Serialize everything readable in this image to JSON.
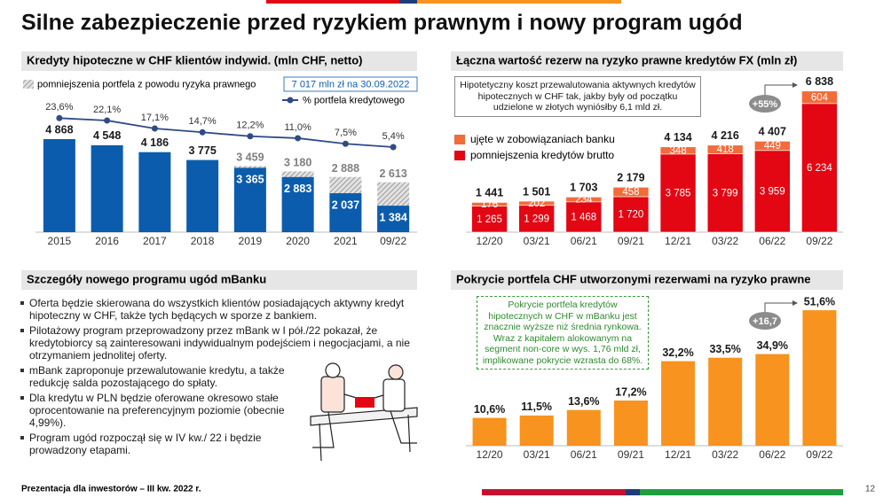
{
  "title": "Silne zabezpieczenie przed ryzykiem prawnym i nowy program ugód",
  "chart_data": [
    {
      "type": "combo",
      "title": "Kredyty hipoteczne w CHF klientów indywid. (mln CHF, netto)",
      "categories": [
        "2015",
        "2016",
        "2017",
        "2018",
        "2019",
        "2020",
        "2021",
        "09/22"
      ],
      "series": [
        {
          "name": "pomniejszenia portfela z powodu ryzyka prawnego",
          "color": "#9a9a9a",
          "pattern": "hatch",
          "values": [
            null,
            null,
            null,
            null,
            3459,
            3180,
            2888,
            2613
          ],
          "value_labels": [
            null,
            null,
            null,
            null,
            "3 459",
            "3 180",
            "2 888",
            "2 613"
          ]
        },
        {
          "color": "#0b5cad",
          "values": [
            4868,
            4548,
            4186,
            3775,
            3365,
            2883,
            2037,
            1384
          ],
          "value_labels": [
            "4 868",
            "4 548",
            "4 186",
            "3 775",
            "3 365",
            "2 883",
            "2 037",
            "1 384"
          ]
        },
        {
          "name": "% portfela kredytowego",
          "type": "line",
          "axis": "y2",
          "color": "#2e4b86",
          "values": [
            23.6,
            22.1,
            17.1,
            14.7,
            12.2,
            11.0,
            7.5,
            5.4
          ],
          "value_labels": [
            "23,6%",
            "22,1%",
            "17,1%",
            "14,7%",
            "12,2%",
            "11,0%",
            "7,5%",
            "5,4%"
          ]
        }
      ],
      "annotation": "7 017 mln zł na 30.09.2022",
      "ylim": [
        0,
        7000
      ],
      "y2lim": [
        -48,
        36
      ]
    },
    {
      "type": "stacked_bar",
      "title": "Łączna wartość rezerw na ryzyko prawne kredytów FX (mln zł)",
      "categories": [
        "12/20",
        "03/21",
        "06/21",
        "09/21",
        "12/21",
        "03/22",
        "06/22",
        "09/22"
      ],
      "series": [
        {
          "name": "pomniejszenia kredytów brutto",
          "color": "#e30613",
          "values": [
            1265,
            1299,
            1468,
            1720,
            3785,
            3799,
            3959,
            6234
          ],
          "value_labels": [
            "1 265",
            "1 299",
            "1 468",
            "1 720",
            "3 785",
            "3 799",
            "3 959",
            "6 234"
          ]
        },
        {
          "name": "ujęte w zobowiązaniach banku",
          "color": "#f26b3a",
          "values": [
            176,
            202,
            234,
            458,
            348,
            418,
            449,
            604
          ],
          "value_labels": [
            "176",
            "202",
            "234",
            "458",
            "348",
            "418",
            "449",
            "604"
          ]
        }
      ],
      "total_labels": [
        "1 441",
        "1 501",
        "1 703",
        "2 179",
        "4 134",
        "4 216",
        "4 407",
        "6 838"
      ],
      "annotation": "+55%",
      "note": "Hipotetyczny koszt przewalutowania aktywnych kredytów hipotecznych w CHF tak, jakby były od początku udzielone w złotych wyniósłby 6,1 mld zł.",
      "ylim": [
        0,
        7000
      ]
    },
    {
      "type": "bar",
      "title": "Pokrycie portfela CHF utworzonymi rezerwami na ryzyko prawne",
      "categories": [
        "12/20",
        "03/21",
        "06/21",
        "09/21",
        "12/21",
        "03/22",
        "06/22",
        "09/22"
      ],
      "values": [
        10.6,
        11.5,
        13.6,
        17.2,
        32.2,
        33.5,
        34.9,
        51.6
      ],
      "value_labels": [
        "10,6%",
        "11,5%",
        "13,6%",
        "17,2%",
        "32,2%",
        "33,5%",
        "34,9%",
        "51,6%"
      ],
      "color": "#f7931e",
      "annotation": "+16,7",
      "note": "Pokrycie portfela kredytów hipotecznych w CHF w mBanku jest znacznie wyższe niż średnia rynkowa. Wraz z kapitałem alokowanym na segment non-core w wys. 1,76 mld zł, implikowane pokrycie wzrasta do 68%.",
      "ylim": [
        0,
        55
      ]
    }
  ],
  "program": {
    "title": "Szczegóły nowego programu ugód mBanku",
    "bullets": [
      "Oferta będzie skierowana do wszystkich klientów posiadających aktywny kredyt hipoteczny w CHF, także tych będących w sporze z bankiem.",
      "Pilotażowy program przeprowadzony przez mBank w I pół./22 pokazał, że kredytobiorcy są zainteresowani indywidualnym podejściem i negocjacjami, a nie otrzymaniem jednolitej oferty.",
      "mBank zaproponuje przewalutowanie kredytu, a także redukcję salda pozostającego do spłaty.",
      "Dla kredytu w PLN będzie oferowane okresowo stałe oprocentowanie na preferencyjnym poziomie (obecnie 4,99%).",
      "Program ugód rozpoczął się w IV kw./ 22 i będzie prowadzony etapami."
    ]
  },
  "footer": {
    "text": "Prezentacja dla inwestorów – III kw. 2022 r.",
    "page": "12"
  }
}
